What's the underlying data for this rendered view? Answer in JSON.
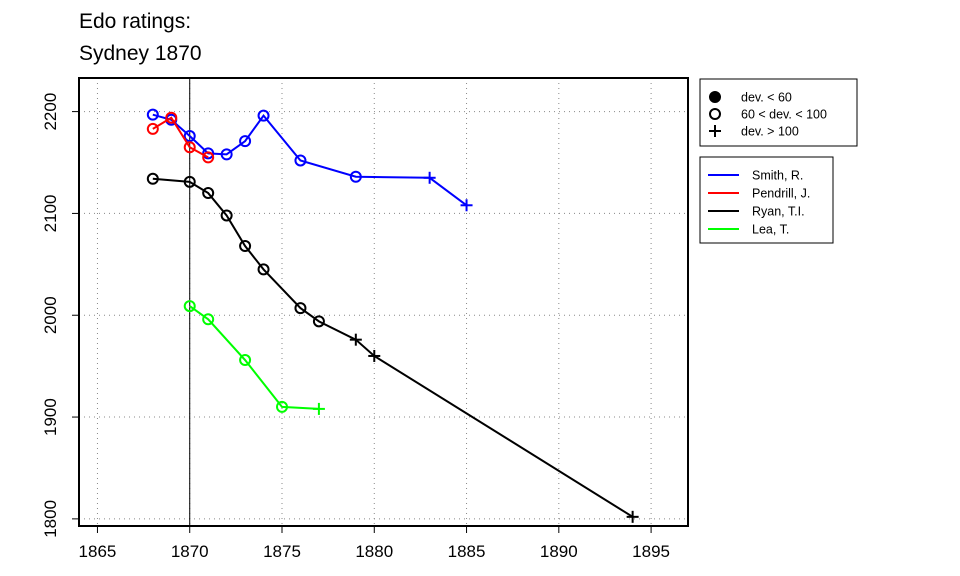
{
  "title_line1": "Edo ratings:",
  "title_line2": "Sydney 1870",
  "chart_data": {
    "type": "line",
    "title": "Edo ratings: Sydney 1870",
    "xlim": [
      1864,
      1897
    ],
    "ylim": [
      1793,
      2233
    ],
    "x_ticks": [
      1865,
      1870,
      1875,
      1880,
      1885,
      1890,
      1895
    ],
    "y_ticks": [
      1800,
      1900,
      2000,
      2100,
      2200
    ],
    "grid": true,
    "reference_line_x": 1870,
    "marker_legend": [
      {
        "marker": "filled",
        "label": "dev. < 60"
      },
      {
        "marker": "open",
        "label": "60 < dev. < 100"
      },
      {
        "marker": "plus",
        "label": "dev. > 100"
      }
    ],
    "series": [
      {
        "name": "Smith, R.",
        "color": "#0000ff",
        "points": [
          [
            1868,
            2197,
            "open"
          ],
          [
            1869,
            2192,
            "open"
          ],
          [
            1870,
            2176,
            "open"
          ],
          [
            1871,
            2159,
            "open"
          ],
          [
            1872,
            2158,
            "open"
          ],
          [
            1873,
            2171,
            "open"
          ],
          [
            1874,
            2196,
            "open"
          ],
          [
            1876,
            2152,
            "open"
          ],
          [
            1879,
            2136,
            "open"
          ],
          [
            1883,
            2135,
            "plus"
          ],
          [
            1885,
            2108,
            "plus"
          ]
        ]
      },
      {
        "name": "Pendrill, J.",
        "color": "#ff0000",
        "points": [
          [
            1868,
            2183,
            "open"
          ],
          [
            1869,
            2194,
            "open"
          ],
          [
            1870,
            2165,
            "open"
          ],
          [
            1871,
            2155,
            "open"
          ]
        ]
      },
      {
        "name": "Ryan, T.I.",
        "color": "#000000",
        "points": [
          [
            1868,
            2134,
            "open"
          ],
          [
            1870,
            2131,
            "open"
          ],
          [
            1871,
            2120,
            "open"
          ],
          [
            1872,
            2098,
            "open"
          ],
          [
            1873,
            2068,
            "open"
          ],
          [
            1874,
            2045,
            "open"
          ],
          [
            1876,
            2007,
            "open"
          ],
          [
            1877,
            1994,
            "open"
          ],
          [
            1879,
            1976,
            "plus"
          ],
          [
            1880,
            1960,
            "plus"
          ],
          [
            1894,
            1802,
            "plus"
          ]
        ]
      },
      {
        "name": "Lea, T.",
        "color": "#00ff00",
        "points": [
          [
            1870,
            2009,
            "open"
          ],
          [
            1871,
            1996,
            "open"
          ],
          [
            1873,
            1956,
            "open"
          ],
          [
            1875,
            1910,
            "open"
          ],
          [
            1877,
            1908,
            "plus"
          ]
        ]
      }
    ]
  }
}
